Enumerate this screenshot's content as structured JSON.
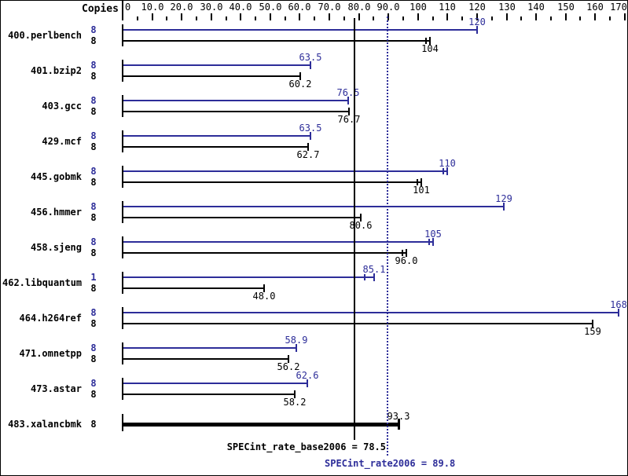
{
  "chart_data": {
    "type": "bar",
    "orientation": "horizontal",
    "copies_header": "Copies",
    "x_axis": {
      "min": 0,
      "max": 170,
      "major_step": 10,
      "minor_step": 5,
      "tick_labels": [
        "0",
        "10.0",
        "20.0",
        "30.0",
        "40.0",
        "50.0",
        "60.0",
        "70.0",
        "80.0",
        "90.0",
        "100",
        "110",
        "120",
        "130",
        "140",
        "150",
        "160",
        "170"
      ]
    },
    "series_colors": {
      "peak": "#2d2d99",
      "base": "#000000"
    },
    "legend": {
      "peak_series": "peak (blue)",
      "base_series": "base (black)"
    },
    "benchmarks": [
      {
        "name": "400.perlbench",
        "peak_copies": "8",
        "base_copies": "8",
        "peak": 120,
        "peak_label": "120",
        "base": 104,
        "base_label": "104",
        "base_runs_tick": true
      },
      {
        "name": "401.bzip2",
        "peak_copies": "8",
        "base_copies": "8",
        "peak": 63.5,
        "peak_label": "63.5",
        "base": 60.2,
        "base_label": "60.2"
      },
      {
        "name": "403.gcc",
        "peak_copies": "8",
        "base_copies": "8",
        "peak": 76.5,
        "peak_label": "76.5",
        "base": 76.7,
        "base_label": "76.7"
      },
      {
        "name": "429.mcf",
        "peak_copies": "8",
        "base_copies": "8",
        "peak": 63.5,
        "peak_label": "63.5",
        "base": 62.7,
        "base_label": "62.7"
      },
      {
        "name": "445.gobmk",
        "peak_copies": "8",
        "base_copies": "8",
        "peak": 110,
        "peak_label": "110",
        "peak_runs_tick": true,
        "base": 101,
        "base_label": "101",
        "base_runs_tick": true
      },
      {
        "name": "456.hmmer",
        "peak_copies": "8",
        "base_copies": "8",
        "peak": 129,
        "peak_label": "129",
        "base": 80.6,
        "base_label": "80.6"
      },
      {
        "name": "458.sjeng",
        "peak_copies": "8",
        "base_copies": "8",
        "peak": 105,
        "peak_label": "105",
        "peak_runs_tick": true,
        "base": 96.0,
        "base_label": "96.0",
        "base_runs_tick": true
      },
      {
        "name": "462.libquantum",
        "peak_copies": "1",
        "base_copies": "8",
        "peak": 85.1,
        "peak_label": "85.1",
        "peak_runs_tick": true,
        "peak_runs_tick_offset": -12,
        "base": 48.0,
        "base_label": "48.0"
      },
      {
        "name": "464.h264ref",
        "peak_copies": "8",
        "base_copies": "8",
        "peak": 168,
        "peak_label": "168",
        "base": 159,
        "base_label": "159"
      },
      {
        "name": "471.omnetpp",
        "peak_copies": "8",
        "base_copies": "8",
        "peak": 58.9,
        "peak_label": "58.9",
        "base": 56.2,
        "base_label": "56.2"
      },
      {
        "name": "473.astar",
        "peak_copies": "8",
        "base_copies": "8",
        "peak": 62.6,
        "peak_label": "62.6",
        "base": 58.2,
        "base_label": "58.2"
      },
      {
        "name": "483.xalancbmk",
        "copies": "8",
        "single": 93.3,
        "single_label": "93.3"
      }
    ],
    "reference_lines": [
      {
        "name": "base_mean",
        "label": "SPECint_rate_base2006 = 78.5",
        "value": 78.5,
        "style": "solid",
        "color": "#000000"
      },
      {
        "name": "peak_mean",
        "label": "SPECint_rate2006 = 89.8",
        "value": 89.8,
        "style": "dotted",
        "color": "#2d2d99"
      }
    ]
  }
}
